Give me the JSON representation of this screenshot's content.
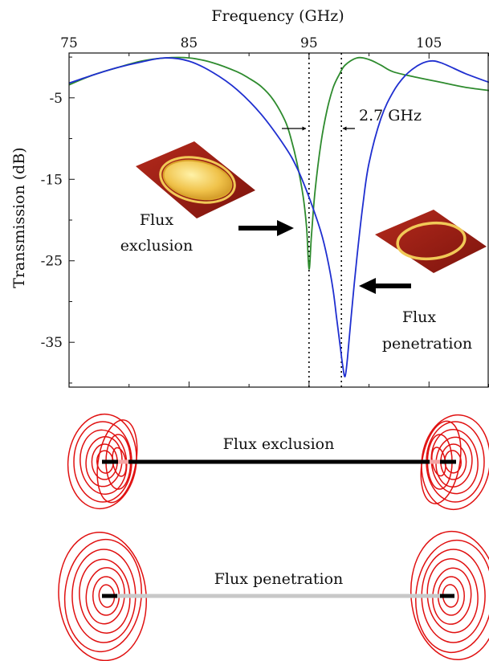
{
  "chart_data": {
    "type": "line",
    "xlabel": "Frequency (GHz)",
    "ylabel": "Transmission (dB)",
    "xlim": [
      75,
      110
    ],
    "ylim": [
      -40.5,
      0.5
    ],
    "x_axis_position": "top",
    "x_ticks": [
      75,
      85,
      95,
      105
    ],
    "y_ticks": [
      -5,
      -15,
      -25,
      -35
    ],
    "x_tick_labels": [
      "75",
      "85",
      "95",
      "105"
    ],
    "y_tick_labels": [
      "-5",
      "-15",
      "-25",
      "-35"
    ],
    "grid": false,
    "series": [
      {
        "color": "#2e8b2e",
        "x": [
          75,
          77,
          79,
          81,
          83,
          85,
          87,
          89,
          90,
          91,
          92,
          93,
          93.5,
          94,
          94.5,
          94.8,
          95,
          95.2,
          95.5,
          96,
          96.5,
          97,
          97.5,
          98,
          99,
          100,
          101,
          102,
          104,
          106,
          108,
          110
        ],
        "y": [
          -3.4,
          -2.2,
          -1.3,
          -0.5,
          -0.1,
          -0.1,
          -0.7,
          -1.8,
          -2.6,
          -3.6,
          -5.2,
          -7.8,
          -10,
          -13,
          -17,
          -21,
          -26,
          -22,
          -16.5,
          -10.5,
          -6.5,
          -3.8,
          -2.2,
          -1.0,
          -0.1,
          -0.3,
          -1.0,
          -1.8,
          -2.5,
          -3.1,
          -3.7,
          -4.1
        ]
      },
      {
        "color": "#1f2fd0",
        "x": [
          75,
          77,
          79,
          81,
          83,
          85,
          87,
          89,
          91,
          93,
          94,
          95,
          96,
          96.5,
          97,
          97.3,
          97.6,
          97.8,
          98,
          98.2,
          98.5,
          99,
          99.5,
          100,
          101,
          102,
          103,
          104,
          105,
          106,
          108,
          110
        ],
        "y": [
          -3.2,
          -2.2,
          -1.3,
          -0.6,
          -0.1,
          -0.5,
          -1.9,
          -4.0,
          -7.0,
          -11,
          -13.6,
          -17.2,
          -21.5,
          -24.5,
          -28.5,
          -32,
          -35.5,
          -37.8,
          -39.2,
          -37,
          -32,
          -24.5,
          -18,
          -13,
          -7.5,
          -4.3,
          -2.3,
          -1.1,
          -0.5,
          -0.7,
          -2.0,
          -3.1
        ]
      }
    ],
    "annotations": {
      "separation": "2.7 GHz",
      "exclusion_label": [
        "Flux",
        "exclusion"
      ],
      "penetration_label": [
        "Flux",
        "penetration"
      ],
      "marker_lines_x": [
        95,
        97.7
      ]
    }
  },
  "diagram": {
    "exclusion_title": "Flux exclusion",
    "penetration_title": "Flux penetration",
    "colors": {
      "field_lines": "#e01010",
      "exclusion_bar": "#000000",
      "penetration_bar": "#c8c8c8",
      "ring_gold": "#e8b43a",
      "substrate": "#9c1b12"
    }
  }
}
